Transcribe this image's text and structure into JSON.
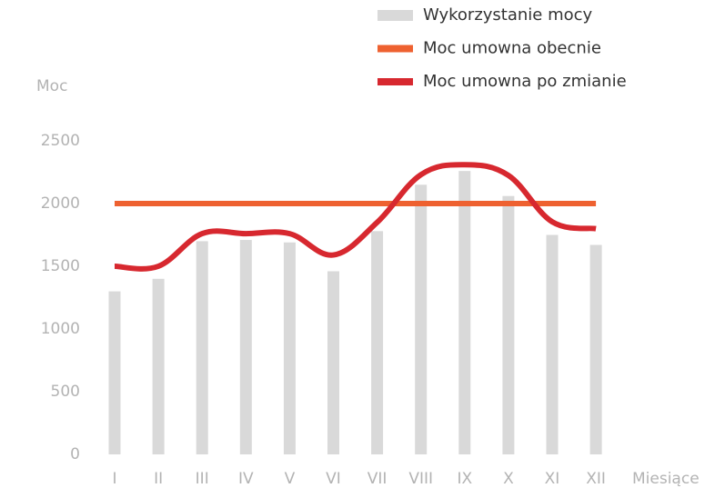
{
  "chart_data": {
    "type": "bar",
    "y_label": "Moc",
    "x_label": "Miesiące",
    "categories": [
      "I",
      "II",
      "III",
      "IV",
      "V",
      "VI",
      "VII",
      "VIII",
      "IX",
      "X",
      "XI",
      "XII"
    ],
    "series": [
      {
        "name": "Wykorzystanie mocy",
        "type": "bar",
        "color": "#d9d9d9",
        "values": [
          1300,
          1400,
          1700,
          1710,
          1690,
          1460,
          1780,
          2150,
          2260,
          2060,
          1750,
          1670
        ]
      },
      {
        "name": "Moc umowna obecnie",
        "type": "line",
        "color": "#ee6130",
        "values": [
          2000,
          2000,
          2000,
          2000,
          2000,
          2000,
          2000,
          2000,
          2000,
          2000,
          2000,
          2000
        ]
      },
      {
        "name": "Moc umowna po zmianie",
        "type": "line",
        "color": "#d7282f",
        "values": [
          1500,
          1500,
          1760,
          1760,
          1760,
          1590,
          1850,
          2230,
          2310,
          2225,
          1855,
          1800
        ]
      }
    ],
    "ylim": [
      0,
      2500
    ],
    "yticks": [
      0,
      500,
      1000,
      1500,
      2000,
      2500
    ],
    "grid": false,
    "legend": "top-right"
  }
}
